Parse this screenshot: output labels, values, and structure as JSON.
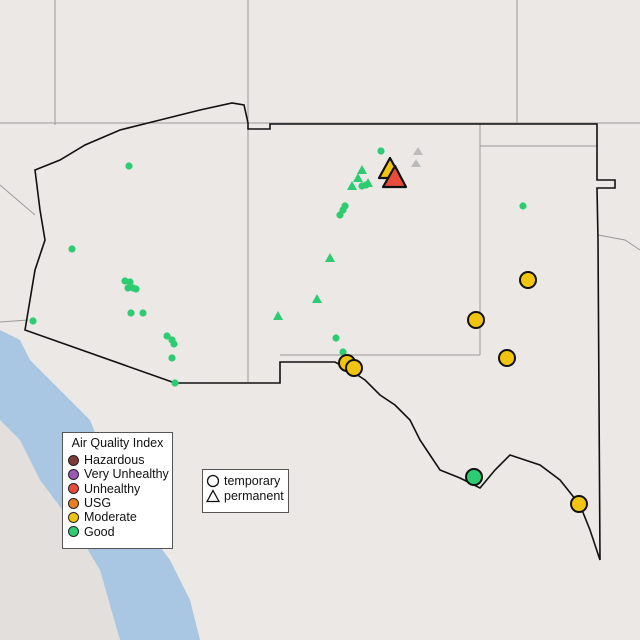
{
  "colors": {
    "land": "#ece8e6",
    "water": "#a9c7e3",
    "boundary": "#111111",
    "state_line": "#9a9a9a",
    "inactive": "#bbbbbb"
  },
  "aqi_legend": {
    "title": "Air Quality Index",
    "items": [
      {
        "label": "Hazardous",
        "color": "#7e3b38"
      },
      {
        "label": "Very Unhealthy",
        "color": "#9b59b6"
      },
      {
        "label": "Unhealthy",
        "color": "#e74c3c"
      },
      {
        "label": "USG",
        "color": "#e67e22"
      },
      {
        "label": "Moderate",
        "color": "#f1c40f"
      },
      {
        "label": "Good",
        "color": "#2ecc71"
      }
    ]
  },
  "type_legend": {
    "items": [
      {
        "label": "temporary",
        "shape": "circle"
      },
      {
        "label": "permanent",
        "shape": "triangle"
      }
    ]
  }
}
